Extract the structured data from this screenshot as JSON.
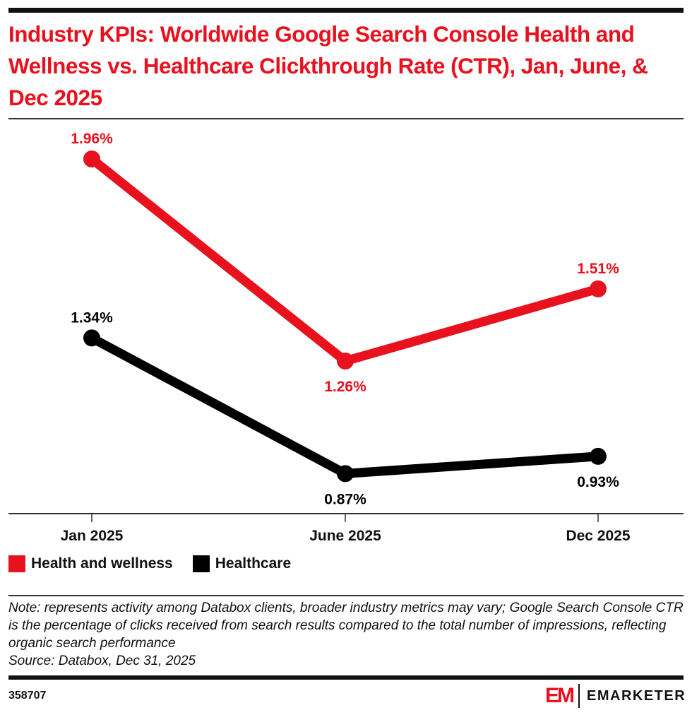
{
  "header": {
    "title": "Industry KPIs: Worldwide Google Search Console Health and Wellness vs. Healthcare Clickthrough Rate (CTR), Jan, June, & Dec 2025"
  },
  "colors": {
    "accent": "#e8111e",
    "health_and_wellness": "#e8111e",
    "healthcare": "#000000"
  },
  "chart_data": {
    "type": "line",
    "title": "Industry KPIs: Worldwide Google Search Console Health and Wellness vs. Healthcare Clickthrough Rate (CTR), Jan, June, & Dec 2025",
    "xlabel": "",
    "ylabel": "",
    "categories": [
      "Jan 2025",
      "June 2025",
      "Dec 2025"
    ],
    "series": [
      {
        "name": "Health and wellness",
        "color": "#e8111e",
        "values": [
          1.96,
          1.26,
          1.51
        ],
        "labels": [
          "1.96%",
          "1.26%",
          "1.51%"
        ],
        "label_pos": [
          "above",
          "below",
          "above"
        ]
      },
      {
        "name": "Healthcare",
        "color": "#000000",
        "values": [
          1.34,
          0.87,
          0.93
        ],
        "labels": [
          "1.34%",
          "0.87%",
          "0.93%"
        ],
        "label_pos": [
          "above",
          "below",
          "below"
        ]
      }
    ],
    "grid": false,
    "legend": "bottom-left"
  },
  "legend": {
    "items": [
      {
        "label": "Health and wellness",
        "color": "#e8111e"
      },
      {
        "label": "Healthcare",
        "color": "#000000"
      }
    ]
  },
  "footer": {
    "note": "Note: represents activity among Databox clients, broader industry metrics may vary;  Google Search Console CTR is the percentage of clicks received from search results compared to the total number of impressions, reflecting organic search performance",
    "source": "Source: Databox, Dec 31, 2025",
    "chart_id": "358707",
    "logo_mark": "EM",
    "brand": "EMARKETER"
  }
}
